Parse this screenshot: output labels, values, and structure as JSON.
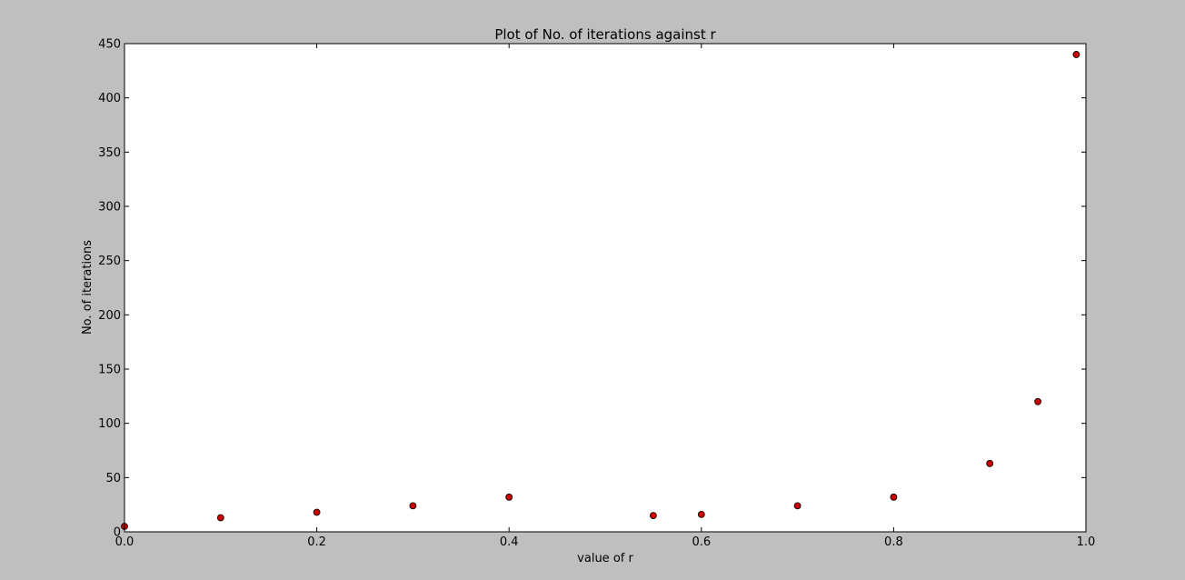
{
  "chart_data": {
    "type": "scatter",
    "title": "Plot of No. of iterations against r",
    "xlabel": "value of r",
    "ylabel": "No. of iterations",
    "xlim": [
      0.0,
      1.0
    ],
    "ylim": [
      0,
      450
    ],
    "xticks": [
      "0.0",
      "0.2",
      "0.4",
      "0.6",
      "0.8",
      "1.0"
    ],
    "yticks": [
      "0",
      "50",
      "100",
      "150",
      "200",
      "250",
      "300",
      "350",
      "400",
      "450"
    ],
    "grid": false,
    "marker_color": "#cc0000",
    "series": [
      {
        "x": [
          0.0,
          0.1,
          0.2,
          0.3,
          0.4,
          0.55,
          0.6,
          0.7,
          0.8,
          0.9,
          0.95,
          0.99
        ],
        "y": [
          5,
          13,
          18,
          24,
          32,
          15,
          16,
          24,
          32,
          63,
          120,
          440
        ]
      }
    ]
  }
}
